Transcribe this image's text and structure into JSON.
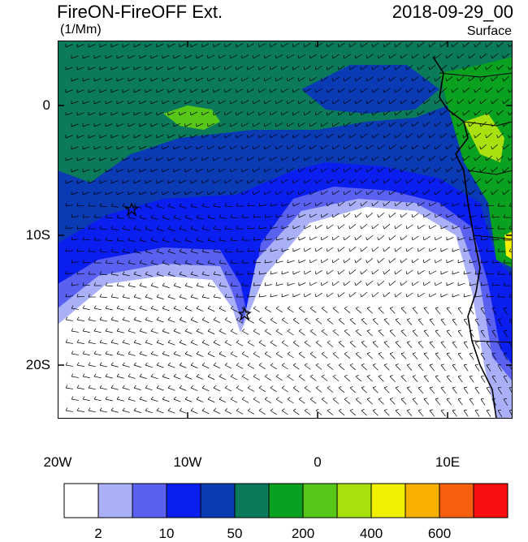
{
  "header": {
    "title_left": "FireON-FireOFF Ext.",
    "units": "(1/Mm)",
    "title_right": "2018-09-29_00",
    "level": "Surface"
  },
  "axes": {
    "y_labels": [
      "0",
      "10S",
      "20S"
    ],
    "x_labels": [
      "20W",
      "10W",
      "0",
      "10E"
    ],
    "lon_range": [
      -20,
      15
    ],
    "lat_range": [
      -24,
      5
    ]
  },
  "markers": [
    {
      "name": "star-marker-1",
      "lon": -14.3,
      "lat": -8.0
    },
    {
      "name": "star-marker-2",
      "lon": -5.7,
      "lat": -16.0
    }
  ],
  "colorbar": {
    "colors": [
      "#ffffff",
      "#aab0f8",
      "#5a60f0",
      "#0a1ef0",
      "#0a3ab4",
      "#0a7a5a",
      "#0aa020",
      "#58c818",
      "#a8e010",
      "#f0f000",
      "#f8b000",
      "#f86010",
      "#f81010"
    ],
    "labels": [
      "2",
      "10",
      "50",
      "200",
      "400",
      "600"
    ]
  }
}
